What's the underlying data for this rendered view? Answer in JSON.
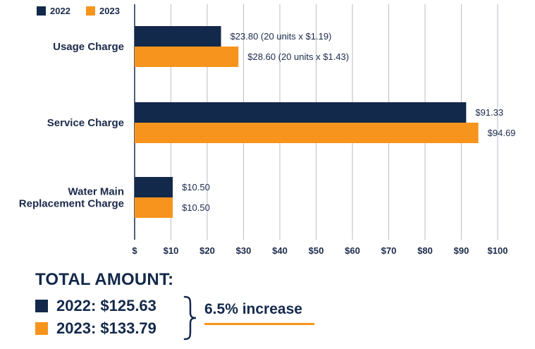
{
  "colors": {
    "navy": "#13294b",
    "orange": "#f7941d",
    "grid": "#b9bec7",
    "text": "#1b2a4a"
  },
  "chart_data": {
    "type": "bar",
    "orientation": "horizontal",
    "categories": [
      "Usage Charge",
      "Service Charge",
      "Water Main Replacement Charge"
    ],
    "category_lines": [
      [
        "Usage Charge"
      ],
      [
        "Service Charge"
      ],
      [
        "Water Main",
        "Replacement Charge"
      ]
    ],
    "series": [
      {
        "name": "2022",
        "color": "#13294b",
        "values": [
          23.8,
          91.33,
          10.5
        ],
        "labels": [
          "$23.80  (20 units x $1.19)",
          "$91.33",
          "$10.50"
        ]
      },
      {
        "name": "2023",
        "color": "#f7941d",
        "values": [
          28.6,
          94.69,
          10.5
        ],
        "labels": [
          "$28.60  (20 units x $1.43)",
          "$94.69",
          "$10.50"
        ]
      }
    ],
    "xlim": [
      0,
      100
    ],
    "xticks": [
      0,
      10,
      20,
      30,
      40,
      50,
      60,
      70,
      80,
      90,
      100
    ],
    "xtick_labels": [
      "$",
      "$10",
      "$20",
      "$30",
      "$40",
      "$50",
      "$60",
      "$70",
      "$80",
      "$90",
      "$100"
    ],
    "grid": true,
    "legend_position": "top-left"
  },
  "totals": {
    "title": "TOTAL AMOUNT:",
    "rows": [
      {
        "text": "2022: $125.63",
        "color": "#13294b"
      },
      {
        "text": "2023: $133.79",
        "color": "#f7941d"
      }
    ],
    "increase": "6.5% increase"
  }
}
